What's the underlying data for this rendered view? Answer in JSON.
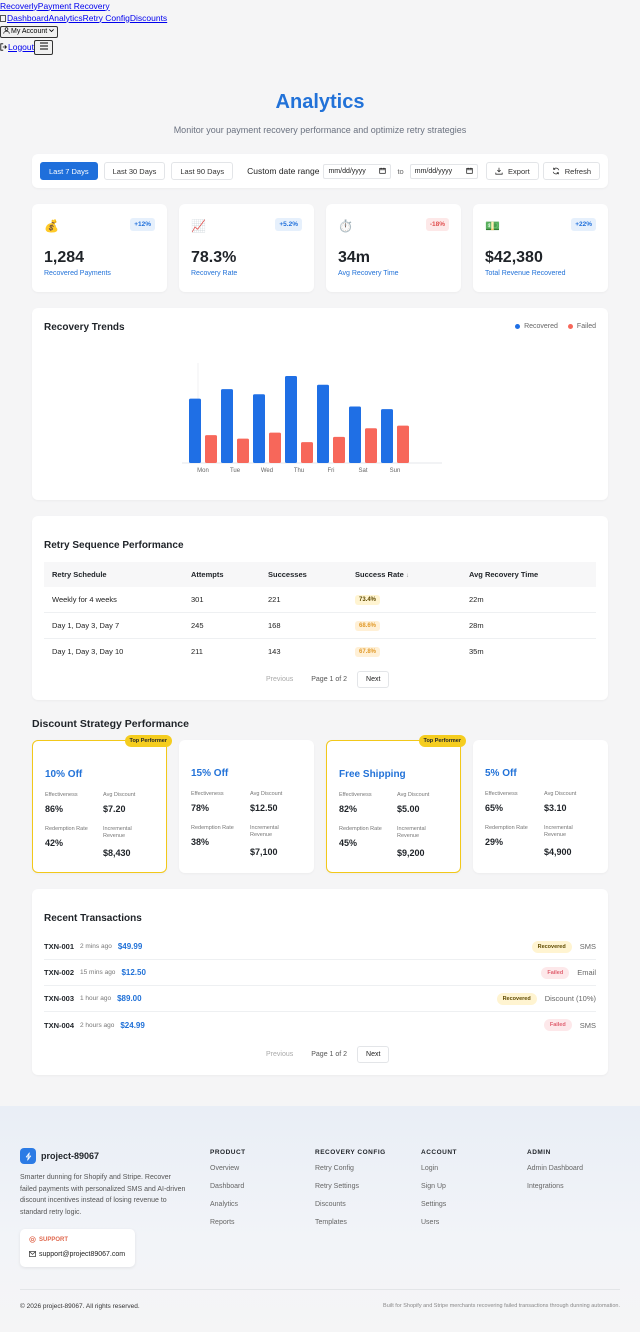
{
  "nav": {
    "brand": "Recoverly",
    "brand_sub": "Payment Recovery",
    "links": [
      "Dashboard",
      "Analytics",
      "Retry Config",
      "Discounts"
    ],
    "account": "My Account",
    "logout": "Logout"
  },
  "header": {
    "title": "Analytics",
    "subtitle": "Monitor your payment recovery performance and optimize retry strategies"
  },
  "filters": {
    "ranges": [
      "Last 7 Days",
      "Last 30 Days",
      "Last 90 Days"
    ],
    "active_range": "Last 7 Days",
    "custom_label": "Custom date range",
    "date_placeholder": "mm/dd/yyyy",
    "to": "to",
    "export": "Export",
    "refresh": "Refresh"
  },
  "stats": [
    {
      "icon": "money-bag-icon",
      "emoji": "💰",
      "delta": "+12%",
      "trend": "up",
      "value": "1,284",
      "label": "Recovered Payments"
    },
    {
      "icon": "chart-up-icon",
      "emoji": "📈",
      "delta": "+5.2%",
      "trend": "up",
      "value": "78.3%",
      "label": "Recovery Rate"
    },
    {
      "icon": "stopwatch-icon",
      "emoji": "⏱️",
      "delta": "-18%",
      "trend": "down",
      "value": "34m",
      "label": "Avg Recovery Time"
    },
    {
      "icon": "cash-icon",
      "emoji": "💵",
      "delta": "+22%",
      "trend": "up",
      "value": "$42,380",
      "label": "Total Revenue Recovered"
    }
  ],
  "trends": {
    "title": "Recovery Trends",
    "legend_recovered": "Recovered",
    "legend_failed": "Failed"
  },
  "chart_data": {
    "type": "bar",
    "title": "Recovery Trends",
    "categories": [
      "Mon",
      "Tue",
      "Wed",
      "Thu",
      "Fri",
      "Sat",
      "Sun"
    ],
    "series": [
      {
        "name": "Recovered",
        "color": "#1f6fe5",
        "values": [
          74,
          85,
          79,
          100,
          90,
          65,
          62
        ]
      },
      {
        "name": "Failed",
        "color": "#f7675a",
        "values": [
          32,
          28,
          35,
          24,
          30,
          40,
          43
        ]
      }
    ],
    "ylim": [
      0,
      115
    ],
    "grid": false,
    "legend": "top-right"
  },
  "retry": {
    "title": "Retry Sequence Performance",
    "columns": [
      "Retry Schedule",
      "Attempts",
      "Successes",
      "Success Rate",
      "Avg Recovery Time"
    ],
    "sort_indicator": "↓",
    "rows": [
      {
        "schedule": "Weekly for 4 weeks",
        "attempts": "301",
        "successes": "221",
        "rate": "73.4%",
        "time": "22m"
      },
      {
        "schedule": "Day 1, Day 3, Day 7",
        "attempts": "245",
        "successes": "168",
        "rate": "68.6%",
        "time": "28m"
      },
      {
        "schedule": "Day 1, Day 3, Day 10",
        "attempts": "211",
        "successes": "143",
        "rate": "67.8%",
        "time": "35m"
      }
    ],
    "pager": {
      "prev": "Previous",
      "page": "Page 1 of 2",
      "next": "Next"
    }
  },
  "discounts": {
    "title": "Discount Strategy Performance",
    "badge": "Top Performer",
    "labels": {
      "effectiveness": "Effectiveness",
      "avg_discount": "Avg Discount",
      "redemption": "Redemption Rate",
      "incremental": "Incremental Revenue"
    },
    "items": [
      {
        "name": "10% Off",
        "top": true,
        "effectiveness": "86%",
        "avg_discount": "$7.20",
        "redemption": "42%",
        "incremental": "$8,430"
      },
      {
        "name": "15% Off",
        "top": false,
        "effectiveness": "78%",
        "avg_discount": "$12.50",
        "redemption": "38%",
        "incremental": "$7,100"
      },
      {
        "name": "Free Shipping",
        "top": true,
        "effectiveness": "82%",
        "avg_discount": "$5.00",
        "redemption": "45%",
        "incremental": "$9,200"
      },
      {
        "name": "5% Off",
        "top": false,
        "effectiveness": "65%",
        "avg_discount": "$3.10",
        "redemption": "29%",
        "incremental": "$4,900"
      }
    ]
  },
  "transactions": {
    "title": "Recent Transactions",
    "rows": [
      {
        "id": "TXN-001",
        "time": "2 mins ago",
        "amount": "$49.99",
        "status": "Recovered",
        "channel": "SMS"
      },
      {
        "id": "TXN-002",
        "time": "15 mins ago",
        "amount": "$12.50",
        "status": "Failed",
        "channel": "Email"
      },
      {
        "id": "TXN-003",
        "time": "1 hour ago",
        "amount": "$89.00",
        "status": "Recovered",
        "channel": "Discount (10%)"
      },
      {
        "id": "TXN-004",
        "time": "2 hours ago",
        "amount": "$24.99",
        "status": "Failed",
        "channel": "SMS"
      }
    ],
    "pager": {
      "prev": "Previous",
      "page": "Page 1 of 2",
      "next": "Next"
    }
  },
  "footer": {
    "brand": "project-89067",
    "description": "Smarter dunning for Shopify and Stripe. Recover failed payments with personalized SMS and AI-driven discount incentives instead of losing revenue to standard retry logic.",
    "support_label": "SUPPORT",
    "support_email": "support@project89067.com",
    "columns": [
      {
        "heading": "PRODUCT",
        "items": [
          "Overview",
          "Dashboard",
          "Analytics",
          "Reports"
        ]
      },
      {
        "heading": "RECOVERY CONFIG",
        "items": [
          "Retry Config",
          "Retry Settings",
          "Discounts",
          "Templates"
        ]
      },
      {
        "heading": "ACCOUNT",
        "items": [
          "Login",
          "Sign Up",
          "Settings",
          "Users"
        ]
      },
      {
        "heading": "ADMIN",
        "items": [
          "Admin Dashboard",
          "Integrations"
        ]
      }
    ],
    "copyright": "© 2026 project-89067. All rights reserved.",
    "built_for": "Built for Shopify and Stripe merchants recovering failed transactions through dunning automation."
  }
}
